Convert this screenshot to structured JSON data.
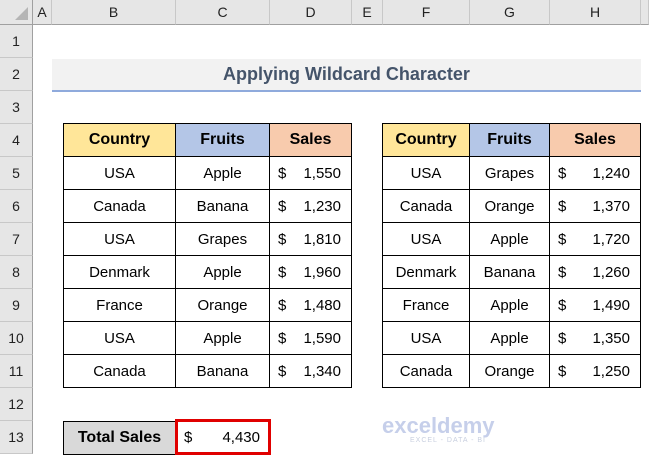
{
  "columns": [
    "A",
    "B",
    "C",
    "D",
    "E",
    "F",
    "G",
    "H"
  ],
  "rows": [
    "1",
    "2",
    "3",
    "4",
    "5",
    "6",
    "7",
    "8",
    "9",
    "10",
    "11",
    "12",
    "13"
  ],
  "title": "Applying Wildcard Character",
  "colors": {
    "country_header": "#ffe699",
    "fruits_header": "#b4c6e7",
    "sales_header": "#f8cbad",
    "title_text": "#44546a",
    "highlight_border": "#e00000"
  },
  "table1": {
    "headers": [
      "Country",
      "Fruits",
      "Sales"
    ],
    "rows": [
      [
        "USA",
        "Apple",
        "1,550"
      ],
      [
        "Canada",
        "Banana",
        "1,230"
      ],
      [
        "USA",
        "Grapes",
        "1,810"
      ],
      [
        "Denmark",
        "Apple",
        "1,960"
      ],
      [
        "France",
        "Orange",
        "1,480"
      ],
      [
        "USA",
        "Apple",
        "1,590"
      ],
      [
        "Canada",
        "Banana",
        "1,340"
      ]
    ]
  },
  "table2": {
    "headers": [
      "Country",
      "Fruits",
      "Sales"
    ],
    "rows": [
      [
        "USA",
        "Grapes",
        "1,240"
      ],
      [
        "Canada",
        "Orange",
        "1,370"
      ],
      [
        "USA",
        "Apple",
        "1,720"
      ],
      [
        "Denmark",
        "Banana",
        "1,260"
      ],
      [
        "France",
        "Apple",
        "1,490"
      ],
      [
        "USA",
        "Apple",
        "1,350"
      ],
      [
        "Canada",
        "Orange",
        "1,250"
      ]
    ]
  },
  "currency": "$",
  "total": {
    "label": "Total Sales",
    "currency": "$",
    "value": "4,430"
  },
  "watermark": {
    "name": "exceldemy",
    "tagline": "EXCEL - DATA - BI"
  }
}
